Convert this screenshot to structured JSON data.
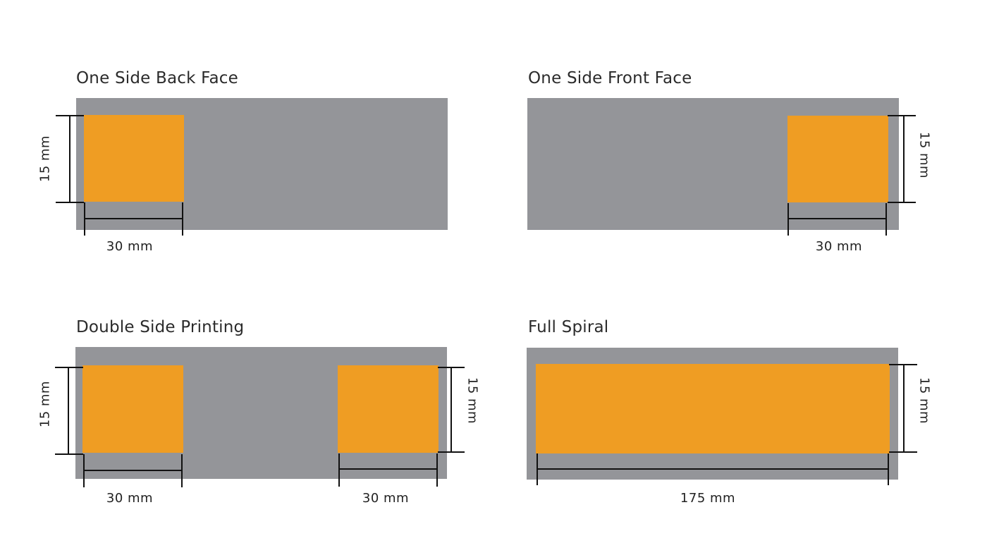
{
  "colors": {
    "background": "#ffffff",
    "panel": "#949599",
    "print_area": "#ef9d23",
    "dimension_line": "#111111"
  },
  "panels": {
    "back_face": {
      "title": "One Side Back Face",
      "height_label": "15 mm",
      "width_label": "30 mm"
    },
    "front_face": {
      "title": "One Side Front Face",
      "height_label": "15 mm",
      "width_label": "30 mm"
    },
    "double_side": {
      "title": "Double Side Printing",
      "left_height_label": "15 mm",
      "left_width_label": "30 mm",
      "right_height_label": "15 mm",
      "right_width_label": "30 mm"
    },
    "full_spiral": {
      "title": "Full Spiral",
      "height_label": "15 mm",
      "width_label": "175 mm"
    }
  }
}
